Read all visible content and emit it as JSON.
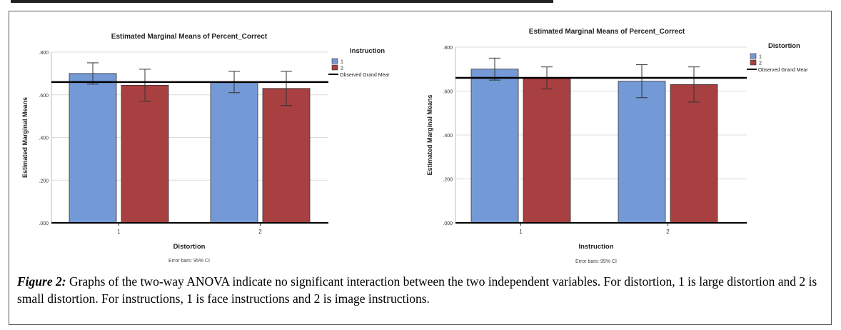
{
  "caption": {
    "lead": "Figure 2:",
    "text": " Graphs of the two-way ANOVA indicate no significant interaction between the two independent variables. For distortion, 1 is large distortion and 2 is small distortion. For instructions, 1 is face instructions and 2 is image instructions."
  },
  "colors": {
    "series1": "#7399d6",
    "series2": "#a83f40",
    "grand_mean": "#000000",
    "grid": "#dcdcdc"
  },
  "chart_data": [
    {
      "type": "bar",
      "title": "Estimated Marginal Means of Percent_Correct",
      "xlabel": "Distortion",
      "ylabel": "Estimated Marginal Means",
      "note": "Error bars: 95% CI",
      "categories": [
        "1",
        "2"
      ],
      "ylim": [
        0,
        0.8
      ],
      "yticks": [
        ".000",
        ".200",
        ".400",
        ".600",
        ".800"
      ],
      "legend_title": "Instruction",
      "legend_position": "right",
      "grand_mean_label": "Observed Grand Mear",
      "grand_mean": 0.66,
      "series": [
        {
          "name": "1",
          "values": [
            0.7,
            0.66
          ],
          "ci_low": [
            0.65,
            0.61
          ],
          "ci_high": [
            0.75,
            0.71
          ]
        },
        {
          "name": "2",
          "values": [
            0.645,
            0.63
          ],
          "ci_low": [
            0.57,
            0.55
          ],
          "ci_high": [
            0.72,
            0.71
          ]
        }
      ]
    },
    {
      "type": "bar",
      "title": "Estimated Marginal Means of Percent_Correct",
      "xlabel": "Instruction",
      "ylabel": "Estimated Marginal Means",
      "note": "Error bars: 95% CI",
      "categories": [
        "1",
        "2"
      ],
      "ylim": [
        0,
        0.8
      ],
      "yticks": [
        ".000",
        ".200",
        ".400",
        ".600",
        ".800"
      ],
      "legend_title": "Distortion",
      "legend_position": "right",
      "grand_mean_label": "Observed Grand Mear",
      "grand_mean": 0.66,
      "series": [
        {
          "name": "1",
          "values": [
            0.7,
            0.645
          ],
          "ci_low": [
            0.65,
            0.57
          ],
          "ci_high": [
            0.75,
            0.72
          ]
        },
        {
          "name": "2",
          "values": [
            0.66,
            0.63
          ],
          "ci_low": [
            0.61,
            0.55
          ],
          "ci_high": [
            0.71,
            0.71
          ]
        }
      ]
    }
  ]
}
